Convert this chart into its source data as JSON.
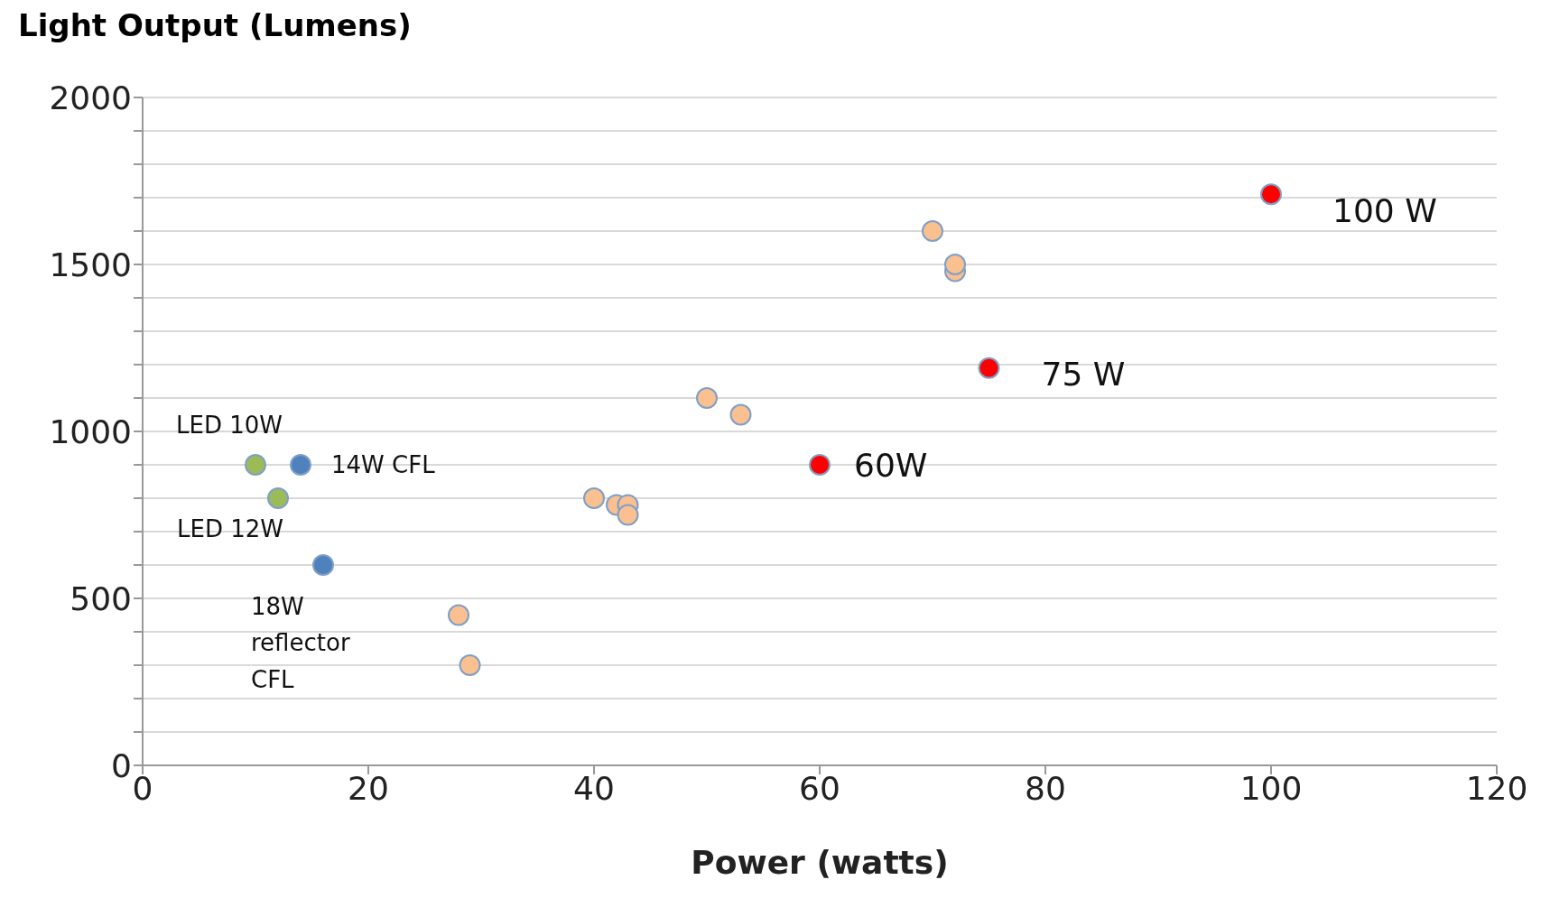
{
  "chart_data": {
    "type": "scatter",
    "ylabel": "Light Output (Lumens)",
    "xlabel": "Power (watts)",
    "xlim": [
      0,
      120
    ],
    "xticks": [
      0,
      20,
      40,
      60,
      80,
      100,
      120
    ],
    "ylim": [
      0,
      2000
    ],
    "yticks": [
      0,
      {
        "value": 100,
        "label": null
      },
      {
        "value": 200,
        "label": null
      },
      {
        "value": 300,
        "label": null
      },
      {
        "value": 400,
        "label": null
      },
      500,
      {
        "value": 600,
        "label": null
      },
      {
        "value": 700,
        "label": null
      },
      {
        "value": 800,
        "label": null
      },
      {
        "value": 900,
        "label": null
      },
      1000,
      {
        "value": 1100,
        "label": null
      },
      {
        "value": 1200,
        "label": null
      },
      {
        "value": 1300,
        "label": null
      },
      {
        "value": 1400,
        "label": null
      },
      1500,
      {
        "value": 1600,
        "label": null
      },
      {
        "value": 1700,
        "label": null
      },
      {
        "value": 1800,
        "label": null
      },
      {
        "value": 1900,
        "label": null
      },
      2000
    ],
    "grid": "y",
    "marker": "circle",
    "series": [
      {
        "color": "#fac090",
        "x": [
          28,
          29,
          40,
          42,
          43,
          43,
          50,
          53,
          70,
          72,
          72
        ],
        "values": [
          450,
          300,
          800,
          780,
          780,
          750,
          1100,
          1050,
          1600,
          1480,
          1500
        ]
      },
      {
        "color": "#9bbb59",
        "x": [
          10,
          12
        ],
        "values": [
          900,
          800
        ]
      },
      {
        "color": "#4f81bd",
        "x": [
          14,
          16
        ],
        "values": [
          900,
          600
        ]
      },
      {
        "color": "#ff0000",
        "x": [
          60,
          75,
          100
        ],
        "values": [
          900,
          1190,
          1710
        ]
      }
    ],
    "annotations": [
      {
        "text": "LED 10W",
        "x": 10,
        "y": 900
      },
      {
        "text": "LED 12W",
        "x": 12,
        "y": 800
      },
      {
        "text": "14W CFL",
        "x": 14,
        "y": 900
      },
      {
        "text": "18W\nreflector\nCFL",
        "x": 16,
        "y": 600
      },
      {
        "text": "60W",
        "x": 60,
        "y": 900
      },
      {
        "text": "75 W",
        "x": 75,
        "y": 1190
      },
      {
        "text": "100 W",
        "x": 100,
        "y": 1710
      }
    ]
  }
}
